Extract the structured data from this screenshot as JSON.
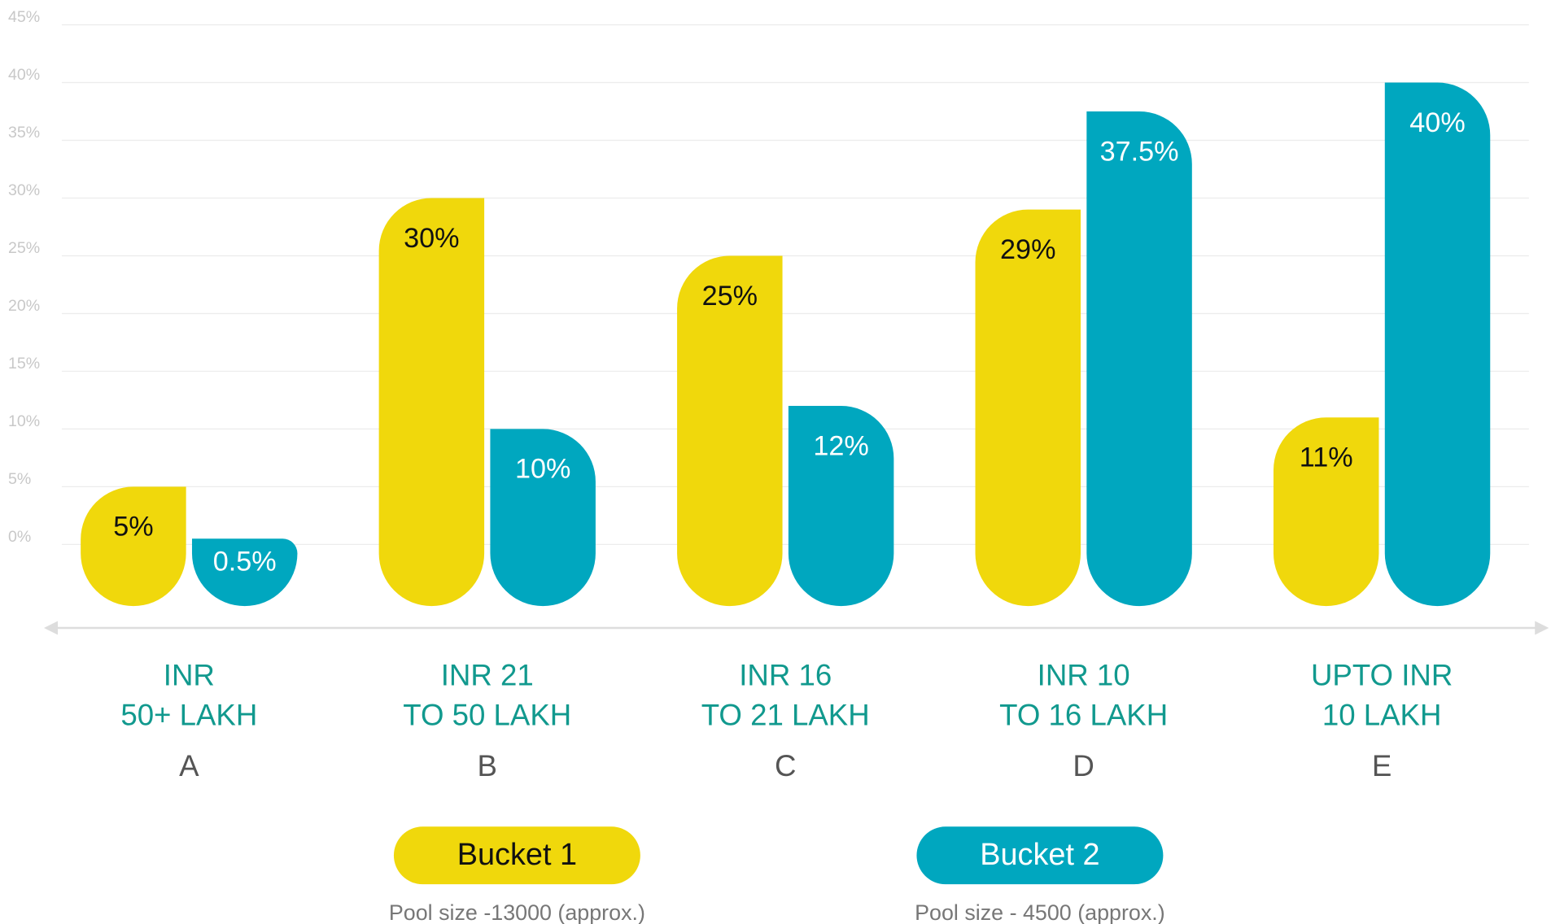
{
  "chart_data": {
    "type": "bar",
    "categories": [
      "A",
      "B",
      "C",
      "D",
      "E"
    ],
    "category_descriptions": [
      [
        "INR",
        "50+ LAKH"
      ],
      [
        "INR 21",
        "TO 50 LAKH"
      ],
      [
        "INR 16",
        "TO 21 LAKH"
      ],
      [
        "INR 10",
        "TO 16 LAKH"
      ],
      [
        "UPTO INR",
        "10 LAKH"
      ]
    ],
    "series": [
      {
        "name": "Bucket 1",
        "note": "Pool size -13000 (approx.)",
        "color": "#f0d80c",
        "values": [
          5,
          30,
          25,
          29,
          11
        ],
        "value_labels": [
          "5%",
          "30%",
          "25%",
          "29%",
          "11%"
        ]
      },
      {
        "name": "Bucket 2",
        "note": "Pool size - 4500 (approx.)",
        "color": "#00a7bf",
        "values": [
          0.5,
          10,
          12,
          37.5,
          40
        ],
        "value_labels": [
          "0.5%",
          "10%",
          "12%",
          "37.5%",
          "40%"
        ]
      }
    ],
    "ylim": [
      0,
      45
    ],
    "yticks": [
      {
        "value": 0,
        "label": "0%"
      },
      {
        "value": 5,
        "label": "5%"
      },
      {
        "value": 10,
        "label": "10%"
      },
      {
        "value": 15,
        "label": "15%"
      },
      {
        "value": 20,
        "label": "20%"
      },
      {
        "value": 25,
        "label": "25%"
      },
      {
        "value": 30,
        "label": "30%"
      },
      {
        "value": 35,
        "label": "35%"
      },
      {
        "value": 40,
        "label": "40%"
      },
      {
        "value": 45,
        "label": "45%"
      }
    ],
    "grid": true
  }
}
